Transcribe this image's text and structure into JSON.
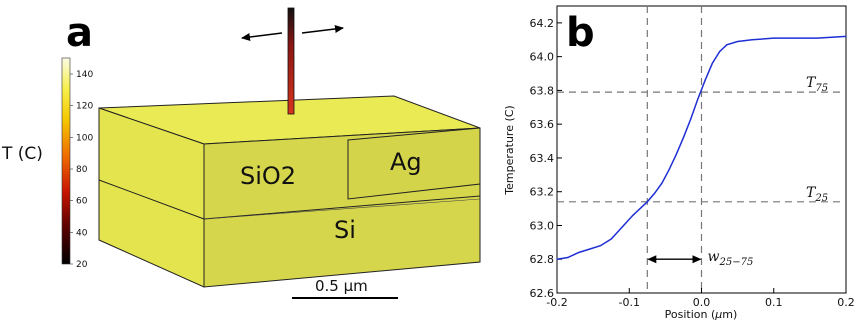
{
  "panel_a": {
    "letter": "a",
    "colorbar": {
      "title": "T (C)",
      "ticks": [
        "140",
        "120",
        "100",
        "80",
        "60",
        "40",
        "20"
      ]
    },
    "materials": {
      "sio2": "SiO2",
      "ag": "Ag",
      "si": "Si"
    },
    "scalebar_label": "0.5 µm",
    "colors": {
      "block_top": "#eaea54",
      "block_front": "#d6d64c",
      "block_side": "#e4e44e",
      "probe": "#c0201a"
    }
  },
  "panel_b": {
    "letter": "b",
    "chart_data": {
      "type": "line",
      "title": "",
      "xlabel_main": "Position (",
      "xlabel_mu": "μ",
      "xlabel_unit": "m)",
      "ylabel": "Temperature (C)",
      "xlim": [
        -0.2,
        0.2
      ],
      "ylim": [
        62.6,
        64.3
      ],
      "xticks": [
        "-0.2",
        "-0.1",
        "0.0",
        "0.1",
        "0.2"
      ],
      "yticks": [
        "62.6",
        "62.8",
        "63.0",
        "63.2",
        "63.4",
        "63.6",
        "63.8",
        "64.0",
        "64.2"
      ],
      "series": [
        {
          "color": "#1f2fd6",
          "x": [
            -0.2,
            -0.185,
            -0.17,
            -0.155,
            -0.14,
            -0.125,
            -0.11,
            -0.095,
            -0.085,
            -0.075,
            -0.065,
            -0.055,
            -0.045,
            -0.035,
            -0.025,
            -0.015,
            -0.005,
            0.005,
            0.015,
            0.025,
            0.035,
            0.05,
            0.07,
            0.1,
            0.13,
            0.16,
            0.2
          ],
          "y": [
            62.8,
            62.81,
            62.84,
            62.86,
            62.88,
            62.92,
            62.99,
            63.06,
            63.1,
            63.14,
            63.19,
            63.25,
            63.33,
            63.42,
            63.52,
            63.63,
            63.75,
            63.86,
            63.96,
            64.03,
            64.07,
            64.09,
            64.1,
            64.11,
            64.11,
            64.11,
            64.12
          ]
        }
      ],
      "hlines": [
        {
          "y": 63.79,
          "label_main": "T",
          "label_sub": "75"
        },
        {
          "y": 63.14,
          "label_main": "T",
          "label_sub": "25"
        }
      ],
      "vlines": [
        -0.075,
        0.0
      ],
      "width_label_main": "w",
      "width_label_sub": "25−75"
    }
  }
}
